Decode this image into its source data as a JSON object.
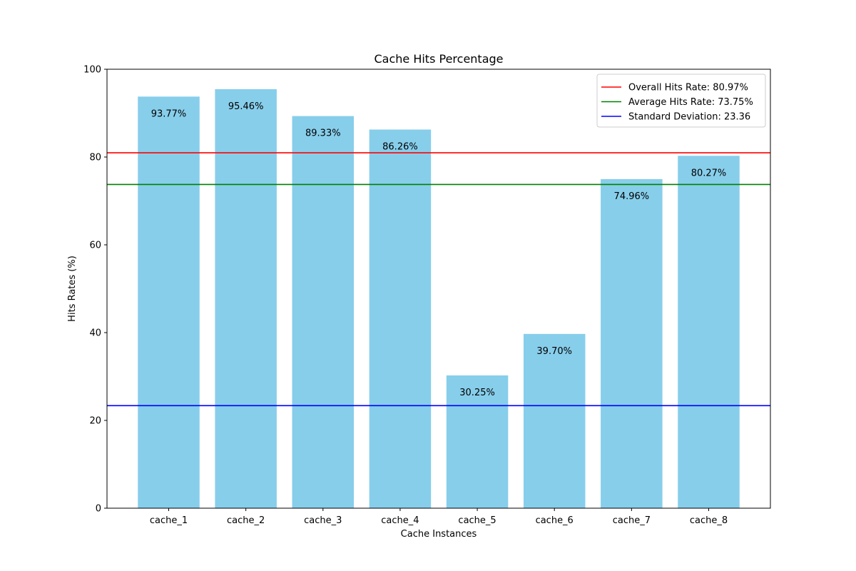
{
  "chart_data": {
    "type": "bar",
    "title": "Cache Hits Percentage",
    "xlabel": "Cache Instances",
    "ylabel": "Hits Rates (%)",
    "categories": [
      "cache_1",
      "cache_2",
      "cache_3",
      "cache_4",
      "cache_5",
      "cache_6",
      "cache_7",
      "cache_8"
    ],
    "values": [
      93.77,
      95.46,
      89.33,
      86.26,
      30.25,
      39.7,
      74.96,
      80.27
    ],
    "value_labels": [
      "93.77%",
      "95.46%",
      "89.33%",
      "86.26%",
      "30.25%",
      "39.70%",
      "74.96%",
      "80.27%"
    ],
    "ylim": [
      0,
      100
    ],
    "yticks": [
      0,
      20,
      40,
      60,
      80,
      100
    ],
    "bar_color": "#87ceeb",
    "grid": false,
    "reference_lines": [
      {
        "label": "Overall Hits Rate: 80.97%",
        "value": 80.97,
        "color": "#ff0000"
      },
      {
        "label": "Average Hits Rate: 73.75%",
        "value": 73.75,
        "color": "#008000"
      },
      {
        "label": "Standard Deviation: 23.36",
        "value": 23.36,
        "color": "#0000ff"
      }
    ],
    "legend_position": "top-right"
  }
}
